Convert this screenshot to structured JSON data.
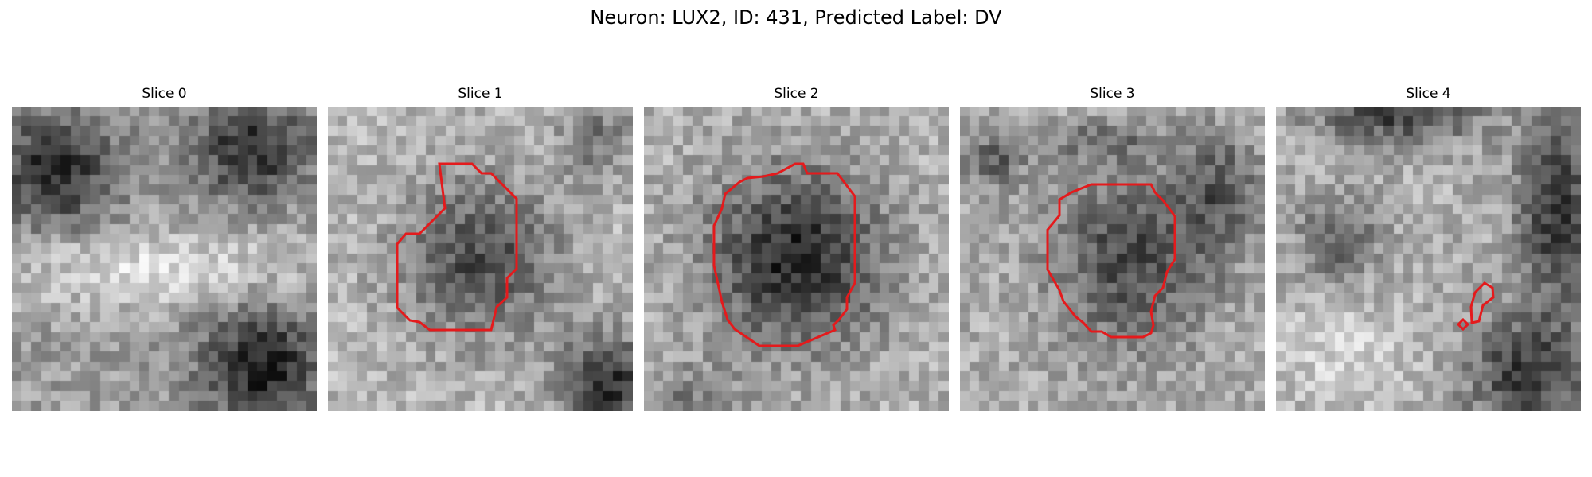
{
  "figure": {
    "title": "Neuron: LUX2, ID: 431, Predicted Label: DV",
    "contour_color": "#e41a1c"
  },
  "panels": [
    {
      "title": "Slice 0"
    },
    {
      "title": "Slice 1"
    },
    {
      "title": "Slice 2"
    },
    {
      "title": "Slice 3"
    },
    {
      "title": "Slice 4"
    }
  ]
}
